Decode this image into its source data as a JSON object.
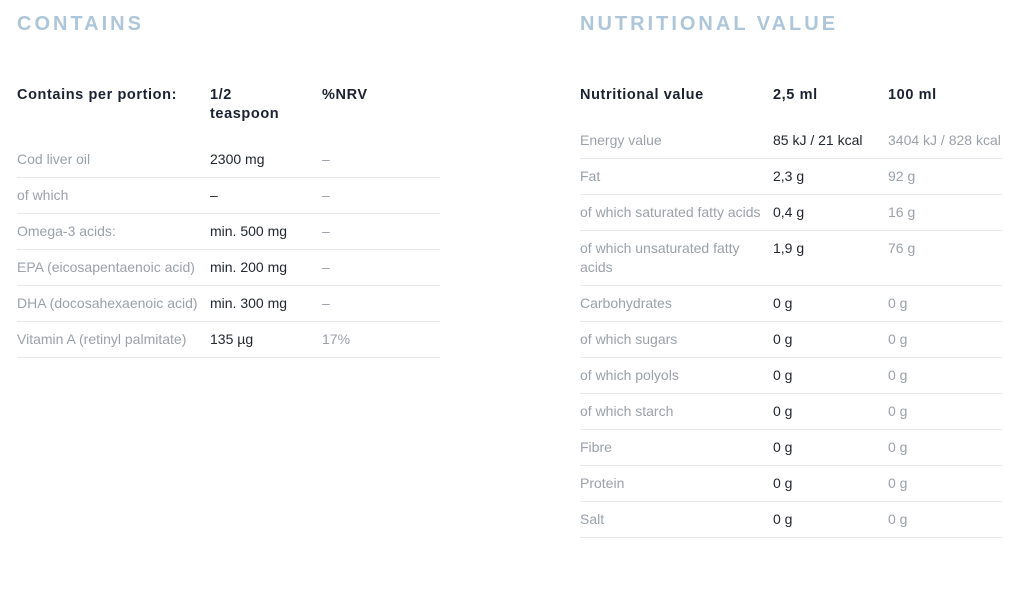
{
  "contains": {
    "title": "CONTAINS",
    "header": {
      "col1": "Contains per portion:",
      "col2": "1/2\nteaspoon",
      "col3": "%NRV"
    },
    "rows": [
      {
        "label": "Cod liver oil",
        "portion": "2300 mg",
        "nrv": "–"
      },
      {
        "label": "of which",
        "portion": "–",
        "nrv": "–"
      },
      {
        "label": "Omega-3 acids:",
        "portion": "min. 500 mg",
        "nrv": "–"
      },
      {
        "label": "EPA (eicosapentaenoic acid)",
        "portion": "min. 200 mg",
        "nrv": "–"
      },
      {
        "label": "DHA (docosahexaenoic acid)",
        "portion": "min. 300 mg",
        "nrv": "–"
      },
      {
        "label": "Vitamin A (retinyl palmitate)",
        "portion": "135 µg",
        "nrv": "17%"
      }
    ]
  },
  "nutritional": {
    "title": "NUTRITIONAL VALUE",
    "header": {
      "col1": "Nutritional value",
      "col2": "2,5 ml",
      "col3": "100 ml"
    },
    "rows": [
      {
        "label": "Energy value",
        "v25": "85 kJ / 21 kcal",
        "v100": "3404 kJ / 828 kcal"
      },
      {
        "label": "Fat",
        "v25": "2,3 g",
        "v100": "92 g"
      },
      {
        "label": "of which saturated fatty acids",
        "v25": "0,4 g",
        "v100": "16 g"
      },
      {
        "label": "of which unsaturated fatty acids",
        "v25": "1,9 g",
        "v100": "76 g"
      },
      {
        "label": "Carbohydrates",
        "v25": "0 g",
        "v100": "0 g"
      },
      {
        "label": "of which sugars",
        "v25": "0 g",
        "v100": "0 g"
      },
      {
        "label": "of which polyols",
        "v25": "0 g",
        "v100": "0 g"
      },
      {
        "label": "of which starch",
        "v25": "0 g",
        "v100": "0 g"
      },
      {
        "label": "Fibre",
        "v25": "0 g",
        "v100": "0 g"
      },
      {
        "label": "Protein",
        "v25": "0 g",
        "v100": "0 g"
      },
      {
        "label": "Salt",
        "v25": "0 g",
        "v100": "0 g"
      }
    ]
  },
  "colors": {
    "title_blue": "#adc6d9",
    "header_dark": "#1b2032",
    "value_dark": "#22262e",
    "label_gray": "#9ba1a9",
    "divider": "#e7e9eb",
    "background": "#ffffff"
  }
}
